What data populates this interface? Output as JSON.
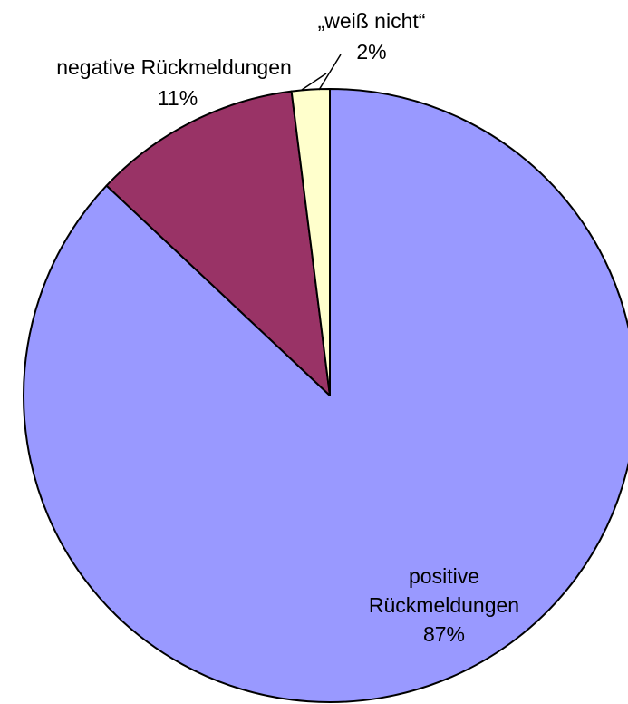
{
  "chart_data": {
    "type": "pie",
    "title": "",
    "slices": [
      {
        "category": "positive Rückmeldungen",
        "label_lines": [
          "positive",
          "Rückmeldungen"
        ],
        "percent_label": "87%",
        "value": 87,
        "color": "#9999ff"
      },
      {
        "category": "negative Rückmeldungen",
        "label_lines": [
          "negative Rückmeldungen"
        ],
        "percent_label": "11%",
        "value": 11,
        "color": "#993366"
      },
      {
        "category": "„weiß nicht“",
        "label_lines": [
          "„weiß nicht“"
        ],
        "percent_label": "2%",
        "value": 2,
        "color": "#ffffcc"
      }
    ],
    "start": "12 o'clock",
    "direction": "clockwise",
    "legend": "none",
    "slice_border_color": "#000000"
  }
}
